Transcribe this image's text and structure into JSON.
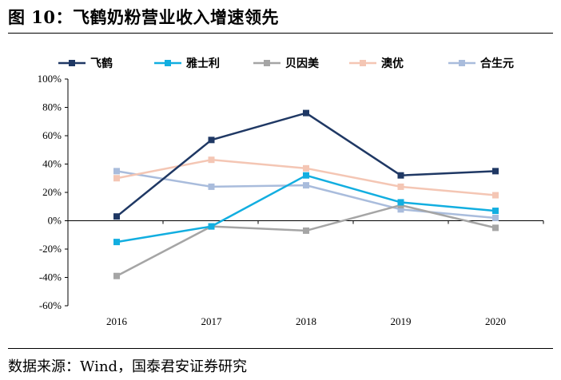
{
  "figure": {
    "title": "图 10：飞鹤奶粉营业收入增速领先",
    "source": "数据来源：Wind，国泰君安证券研究"
  },
  "chart_data": {
    "type": "line",
    "title": "飞鹤奶粉营业收入增速领先",
    "xlabel": "",
    "ylabel": "",
    "categories": [
      "2016",
      "2017",
      "2018",
      "2019",
      "2020"
    ],
    "ylim": [
      -60,
      100
    ],
    "yticks": [
      100,
      80,
      60,
      40,
      20,
      0,
      -20,
      -40,
      -60
    ],
    "ytick_labels": [
      "100%",
      "80%",
      "60%",
      "40%",
      "20%",
      "0%",
      "-20%",
      "-40%",
      "-60%"
    ],
    "legend_position": "top",
    "grid": false,
    "series": [
      {
        "name": "飞鹤",
        "color": "#1f3864",
        "values": [
          3,
          57,
          76,
          32,
          35
        ]
      },
      {
        "name": "雅士利",
        "color": "#12aee0",
        "values": [
          -15,
          -4,
          32,
          13,
          7
        ]
      },
      {
        "name": "贝因美",
        "color": "#a5a5a5",
        "values": [
          -39,
          -4,
          -7,
          11,
          -5
        ]
      },
      {
        "name": "澳优",
        "color": "#f4c6b4",
        "values": [
          30,
          43,
          37,
          24,
          18
        ]
      },
      {
        "name": "合生元",
        "color": "#a9bcdc",
        "values": [
          35,
          24,
          25,
          8,
          2
        ]
      }
    ]
  }
}
